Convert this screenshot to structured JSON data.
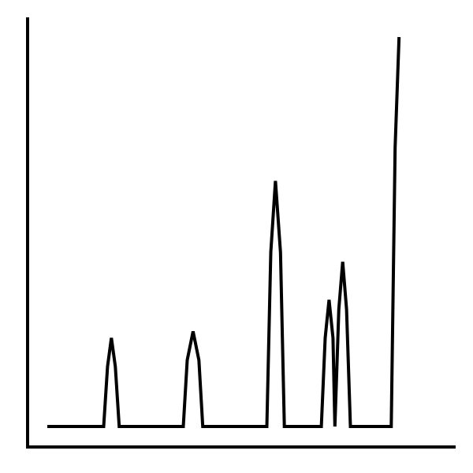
{
  "chart_data": {
    "type": "line",
    "title": "",
    "xlabel": "",
    "ylabel": "",
    "xlim": [
      0,
      100
    ],
    "ylim": [
      0,
      100
    ],
    "grid": false,
    "legend": "none",
    "colors": {
      "line": "#000000",
      "axes": "#000000",
      "background": "#ffffff"
    },
    "series": [
      {
        "x": [
          0,
          14.5,
          15.5,
          16.5,
          17.5,
          18.5,
          35.0,
          36.0,
          37.5,
          39.0,
          40.0,
          56.5,
          57.5,
          58.7,
          60.0,
          61.0,
          70.5,
          71.5,
          72.5,
          73.5,
          74.0,
          75.0,
          76.0,
          77.0,
          78.0,
          88.5,
          89.5,
          90.5
        ],
        "y": [
          0,
          0,
          14.6,
          21.6,
          14.6,
          0,
          0,
          16.2,
          23.2,
          16.2,
          0,
          0,
          42.5,
          59.9,
          42.5,
          0,
          0,
          21.6,
          30.9,
          21.6,
          0,
          28.6,
          40.2,
          28.6,
          0,
          0,
          68.0,
          95.0
        ]
      }
    ]
  }
}
